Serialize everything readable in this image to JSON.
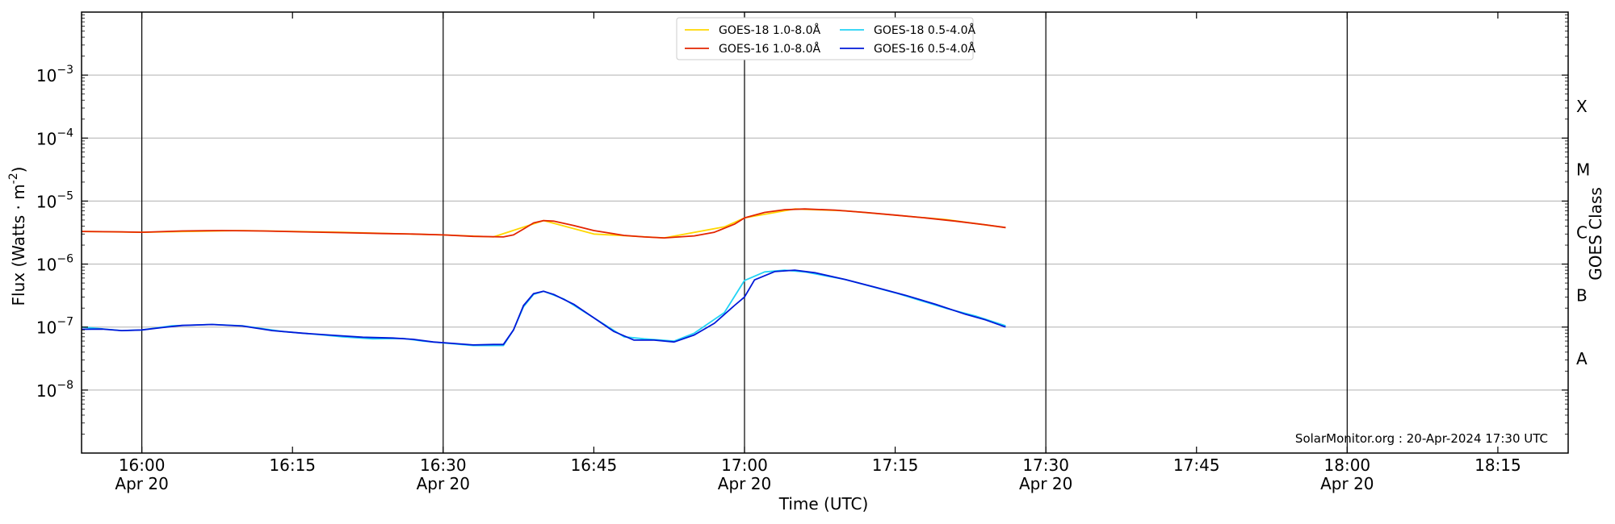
{
  "chart_data": {
    "type": "line",
    "xlabel": "Time (UTC)",
    "ylabel": "Flux (Watts · m",
    "ylabel_sup": "-2",
    "ylabel_suffix": ")",
    "y2label": "GOES Class",
    "yscale": "log",
    "xlim": [
      "15:54",
      "18:22"
    ],
    "ylim": [
      1e-09,
      0.01
    ],
    "grid": "horizontal",
    "legend_placement": "upper-center",
    "credit": "SolarMonitor.org : 20-Apr-2024 17:30 UTC",
    "y_ticks": [
      {
        "value": 1e-08,
        "base": "10",
        "exp": "−8"
      },
      {
        "value": 1e-07,
        "base": "10",
        "exp": "−7"
      },
      {
        "value": 1e-06,
        "base": "10",
        "exp": "−6"
      },
      {
        "value": 1e-05,
        "base": "10",
        "exp": "−5"
      },
      {
        "value": 0.0001,
        "base": "10",
        "exp": "−4"
      },
      {
        "value": 0.001,
        "base": "10",
        "exp": "−3"
      }
    ],
    "x_ticks": [
      {
        "time": "16:00",
        "label": "16:00",
        "date": "Apr 20",
        "major": true
      },
      {
        "time": "16:15",
        "label": "16:15",
        "date": "",
        "major": false
      },
      {
        "time": "16:30",
        "label": "16:30",
        "date": "Apr 20",
        "major": true
      },
      {
        "time": "16:45",
        "label": "16:45",
        "date": "",
        "major": false
      },
      {
        "time": "17:00",
        "label": "17:00",
        "date": "Apr 20",
        "major": true
      },
      {
        "time": "17:15",
        "label": "17:15",
        "date": "",
        "major": false
      },
      {
        "time": "17:30",
        "label": "17:30",
        "date": "Apr 20",
        "major": true
      },
      {
        "time": "17:45",
        "label": "17:45",
        "date": "",
        "major": false
      },
      {
        "time": "18:00",
        "label": "18:00",
        "date": "Apr 20",
        "major": true
      },
      {
        "time": "18:15",
        "label": "18:15",
        "date": "",
        "major": false
      }
    ],
    "goes_classes": [
      {
        "label": "A",
        "flux": 3.16e-08
      },
      {
        "label": "B",
        "flux": 3.16e-07
      },
      {
        "label": "C",
        "flux": 3.16e-06
      },
      {
        "label": "M",
        "flux": 3.16e-05
      },
      {
        "label": "X",
        "flux": 0.000316
      }
    ],
    "series": [
      {
        "name": "GOES-18 1.0-8.0Å",
        "color": "#ffd700",
        "points": [
          [
            "15:54",
            3.3e-06
          ],
          [
            "16:00",
            3.2e-06
          ],
          [
            "16:10",
            3.4e-06
          ],
          [
            "16:20",
            3.2e-06
          ],
          [
            "16:30",
            2.9e-06
          ],
          [
            "16:35",
            2.7e-06
          ],
          [
            "16:40",
            4.9e-06
          ],
          [
            "16:45",
            3e-06
          ],
          [
            "16:52",
            2.6e-06
          ],
          [
            "16:58",
            3.9e-06
          ],
          [
            "17:00",
            5.4e-06
          ],
          [
            "17:05",
            7.5e-06
          ],
          [
            "17:10",
            7e-06
          ],
          [
            "17:20",
            5.1e-06
          ],
          [
            "17:26",
            3.8e-06
          ]
        ]
      },
      {
        "name": "GOES-16 1.0-8.0Å",
        "color": "#e32400",
        "points": [
          [
            "15:54",
            3.3e-06
          ],
          [
            "15:58",
            3.25e-06
          ],
          [
            "16:00",
            3.2e-06
          ],
          [
            "16:04",
            3.35e-06
          ],
          [
            "16:08",
            3.4e-06
          ],
          [
            "16:12",
            3.35e-06
          ],
          [
            "16:16",
            3.25e-06
          ],
          [
            "16:20",
            3.15e-06
          ],
          [
            "16:24",
            3.05e-06
          ],
          [
            "16:27",
            3e-06
          ],
          [
            "16:30",
            2.9e-06
          ],
          [
            "16:33",
            2.75e-06
          ],
          [
            "16:36",
            2.7e-06
          ],
          [
            "16:37",
            2.9e-06
          ],
          [
            "16:38",
            3.6e-06
          ],
          [
            "16:39",
            4.5e-06
          ],
          [
            "16:40",
            4.9e-06
          ],
          [
            "16:41",
            4.8e-06
          ],
          [
            "16:43",
            4.1e-06
          ],
          [
            "16:45",
            3.4e-06
          ],
          [
            "16:48",
            2.85e-06
          ],
          [
            "16:50",
            2.7e-06
          ],
          [
            "16:52",
            2.6e-06
          ],
          [
            "16:55",
            2.8e-06
          ],
          [
            "16:57",
            3.2e-06
          ],
          [
            "16:59",
            4.3e-06
          ],
          [
            "17:00",
            5.4e-06
          ],
          [
            "17:02",
            6.6e-06
          ],
          [
            "17:04",
            7.3e-06
          ],
          [
            "17:06",
            7.5e-06
          ],
          [
            "17:09",
            7.2e-06
          ],
          [
            "17:12",
            6.6e-06
          ],
          [
            "17:15",
            6e-06
          ],
          [
            "17:18",
            5.4e-06
          ],
          [
            "17:21",
            4.8e-06
          ],
          [
            "17:24",
            4.2e-06
          ],
          [
            "17:26",
            3.8e-06
          ]
        ]
      },
      {
        "name": "GOES-18 0.5-4.0Å",
        "color": "#22d3f5",
        "points": [
          [
            "15:54",
            1e-07
          ],
          [
            "15:58",
            8.8e-08
          ],
          [
            "16:00",
            9e-08
          ],
          [
            "16:03",
            1.05e-07
          ],
          [
            "16:07",
            1.1e-07
          ],
          [
            "16:10",
            1.05e-07
          ],
          [
            "16:14",
            8.5e-08
          ],
          [
            "16:18",
            7.5e-08
          ],
          [
            "16:20",
            7e-08
          ],
          [
            "16:23",
            6.5e-08
          ],
          [
            "16:26",
            6.6e-08
          ],
          [
            "16:28",
            6e-08
          ],
          [
            "16:30",
            5.6e-08
          ],
          [
            "16:33",
            5.1e-08
          ],
          [
            "16:36",
            5.1e-08
          ],
          [
            "16:37",
            9e-08
          ],
          [
            "16:38",
            2.1e-07
          ],
          [
            "16:39",
            3.3e-07
          ],
          [
            "16:40",
            3.7e-07
          ],
          [
            "16:42",
            2.8e-07
          ],
          [
            "16:45",
            1.4e-07
          ],
          [
            "16:48",
            7e-08
          ],
          [
            "16:50",
            6.5e-08
          ],
          [
            "16:53",
            6e-08
          ],
          [
            "16:55",
            8e-08
          ],
          [
            "16:58",
            1.7e-07
          ],
          [
            "17:00",
            5.5e-07
          ],
          [
            "17:02",
            7.5e-07
          ],
          [
            "17:04",
            8e-07
          ],
          [
            "17:06",
            7.5e-07
          ],
          [
            "17:10",
            5.7e-07
          ],
          [
            "17:15",
            3.5e-07
          ],
          [
            "17:20",
            2e-07
          ],
          [
            "17:23",
            1.5e-07
          ],
          [
            "17:26",
            1.05e-07
          ]
        ]
      },
      {
        "name": "GOES-16 0.5-4.0Å",
        "color": "#0018d8",
        "points": [
          [
            "15:54",
            9.2e-08
          ],
          [
            "15:56",
            9.3e-08
          ],
          [
            "15:58",
            8.8e-08
          ],
          [
            "16:00",
            9e-08
          ],
          [
            "16:02",
            9.8e-08
          ],
          [
            "16:04",
            1.06e-07
          ],
          [
            "16:07",
            1.1e-07
          ],
          [
            "16:10",
            1.04e-07
          ],
          [
            "16:13",
            8.8e-08
          ],
          [
            "16:16",
            8e-08
          ],
          [
            "16:19",
            7.4e-08
          ],
          [
            "16:22",
            6.9e-08
          ],
          [
            "16:25",
            6.7e-08
          ],
          [
            "16:27",
            6.4e-08
          ],
          [
            "16:29",
            5.8e-08
          ],
          [
            "16:31",
            5.5e-08
          ],
          [
            "16:33",
            5.2e-08
          ],
          [
            "16:35",
            5.3e-08
          ],
          [
            "16:36",
            5.3e-08
          ],
          [
            "16:37",
            9e-08
          ],
          [
            "16:38",
            2.2e-07
          ],
          [
            "16:39",
            3.4e-07
          ],
          [
            "16:40",
            3.7e-07
          ],
          [
            "16:41",
            3.3e-07
          ],
          [
            "16:43",
            2.3e-07
          ],
          [
            "16:45",
            1.4e-07
          ],
          [
            "16:47",
            8.5e-08
          ],
          [
            "16:49",
            6.2e-08
          ],
          [
            "16:51",
            6.2e-08
          ],
          [
            "16:53",
            5.8e-08
          ],
          [
            "16:55",
            7.5e-08
          ],
          [
            "16:57",
            1.15e-07
          ],
          [
            "16:59",
            2.2e-07
          ],
          [
            "17:00",
            3e-07
          ],
          [
            "17:01",
            5.6e-07
          ],
          [
            "17:03",
            7.6e-07
          ],
          [
            "17:05",
            8e-07
          ],
          [
            "17:07",
            7.3e-07
          ],
          [
            "17:10",
            5.7e-07
          ],
          [
            "17:13",
            4.3e-07
          ],
          [
            "17:16",
            3.2e-07
          ],
          [
            "17:19",
            2.3e-07
          ],
          [
            "17:22",
            1.6e-07
          ],
          [
            "17:24",
            1.3e-07
          ],
          [
            "17:26",
            1e-07
          ]
        ]
      }
    ]
  }
}
